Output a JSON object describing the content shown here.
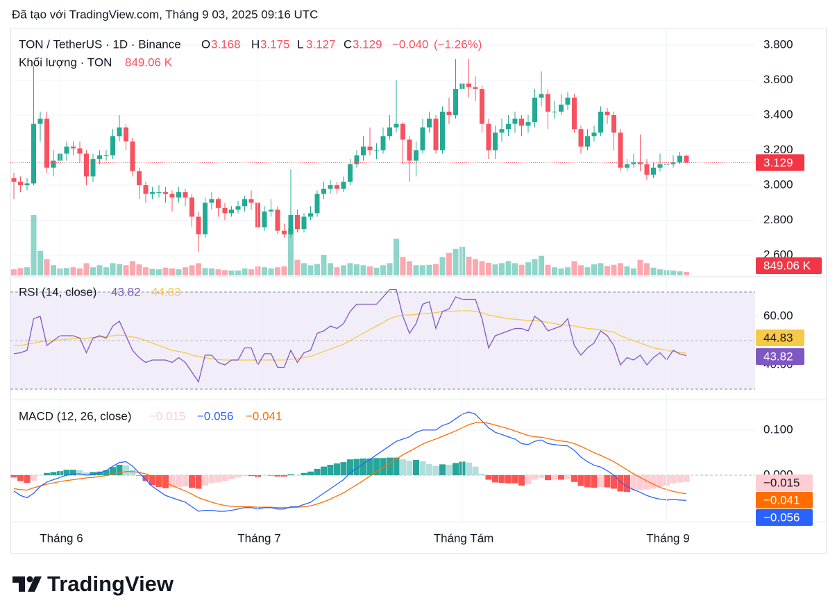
{
  "header": "Đã tạo với TradingView.com, Tháng 9 03, 2025 09:16 UTC",
  "footer_brand": "TradingView",
  "chart_data": {
    "type": "candlestick",
    "symbol": "TON / TetherUS · 1D · Binance",
    "ohlc_legend": {
      "labels": [
        "O",
        "H",
        "L",
        "C"
      ],
      "values": [
        3.168,
        3.175,
        3.127,
        3.129
      ],
      "change": {
        "value": -0.04,
        "label": "−0.040"
      },
      "change_pct": {
        "value": -1.26,
        "label": "(−1.26%)"
      }
    },
    "up_color": "#22ab94",
    "down_color": "#f7525f",
    "open": [
      3.04,
      3.02,
      3.0,
      3.01,
      3.35,
      3.38,
      3.1,
      3.14,
      3.18,
      3.22,
      3.21,
      3.18,
      3.05,
      3.15,
      3.17,
      3.17,
      3.28,
      3.33,
      3.25,
      3.08,
      3.0,
      2.95,
      2.96,
      2.96,
      2.95,
      2.93,
      2.96,
      2.93,
      2.82,
      2.72,
      2.9,
      2.92,
      2.87,
      2.84,
      2.86,
      2.88,
      2.92,
      2.9,
      2.76,
      2.85,
      2.86,
      2.74,
      2.72,
      2.83,
      2.75,
      2.82,
      2.84,
      2.95,
      2.98,
      3.0,
      2.98,
      3.02,
      3.12,
      3.17,
      3.22,
      3.2,
      3.2,
      3.28,
      3.33,
      3.35,
      3.26,
      3.14,
      3.2,
      3.33,
      3.38,
      3.2,
      3.42,
      3.4,
      3.55,
      3.58,
      3.56,
      3.55,
      3.35,
      3.2,
      3.3,
      3.32,
      3.35,
      3.38,
      3.34,
      3.36,
      3.5,
      3.52,
      3.42,
      3.42,
      3.46,
      3.5,
      3.32,
      3.22,
      3.28,
      3.3,
      3.42,
      3.4,
      3.3,
      3.1,
      3.12,
      3.13,
      3.12,
      3.06,
      3.1,
      3.12,
      3.12,
      3.13,
      3.168
    ],
    "high": [
      3.07,
      3.05,
      3.04,
      3.68,
      3.42,
      3.42,
      3.2,
      3.22,
      3.25,
      3.25,
      3.25,
      3.2,
      3.18,
      3.2,
      3.2,
      3.32,
      3.4,
      3.35,
      3.27,
      3.1,
      3.02,
      2.99,
      3.0,
      2.99,
      2.97,
      2.99,
      2.98,
      2.95,
      2.85,
      2.93,
      2.96,
      2.93,
      2.9,
      2.88,
      2.91,
      2.94,
      2.97,
      2.92,
      2.88,
      2.92,
      2.88,
      2.78,
      3.09,
      2.86,
      2.84,
      2.88,
      2.97,
      3.02,
      3.03,
      3.02,
      3.05,
      3.15,
      3.2,
      3.28,
      3.33,
      3.24,
      3.33,
      3.4,
      3.6,
      3.36,
      3.28,
      3.25,
      3.38,
      3.42,
      3.4,
      3.45,
      3.5,
      3.72,
      3.75,
      3.72,
      3.62,
      3.57,
      3.38,
      3.34,
      3.38,
      3.4,
      3.42,
      3.4,
      3.4,
      3.55,
      3.65,
      3.55,
      3.48,
      3.52,
      3.53,
      3.52,
      3.34,
      3.32,
      3.34,
      3.45,
      3.44,
      3.42,
      3.32,
      3.15,
      3.18,
      3.29,
      3.15,
      3.13,
      3.18,
      3.18,
      3.17,
      3.19,
      3.175
    ],
    "low": [
      2.92,
      2.96,
      2.97,
      3.0,
      3.25,
      3.07,
      3.05,
      3.1,
      3.14,
      3.17,
      3.13,
      3.0,
      3.02,
      3.12,
      3.14,
      3.15,
      3.25,
      3.2,
      3.05,
      2.92,
      2.9,
      2.92,
      2.93,
      2.9,
      2.85,
      2.9,
      2.88,
      2.76,
      2.62,
      2.7,
      2.86,
      2.82,
      2.8,
      2.82,
      2.84,
      2.85,
      2.86,
      2.74,
      2.74,
      2.82,
      2.72,
      2.7,
      2.7,
      2.73,
      2.73,
      2.8,
      2.82,
      2.92,
      2.95,
      2.95,
      2.96,
      3.0,
      3.1,
      3.14,
      3.17,
      3.15,
      3.18,
      3.26,
      3.3,
      3.12,
      3.02,
      3.05,
      3.18,
      3.3,
      3.18,
      3.18,
      3.35,
      3.38,
      3.5,
      3.5,
      3.48,
      3.3,
      3.15,
      3.15,
      3.25,
      3.28,
      3.3,
      3.28,
      3.3,
      3.33,
      3.45,
      3.32,
      3.38,
      3.4,
      3.43,
      3.3,
      3.18,
      3.2,
      3.25,
      3.28,
      3.35,
      3.2,
      3.08,
      3.08,
      3.1,
      3.08,
      3.03,
      3.04,
      3.08,
      3.09,
      3.1,
      3.12,
      3.127
    ],
    "close": [
      3.02,
      3.0,
      3.01,
      3.35,
      3.38,
      3.1,
      3.14,
      3.18,
      3.22,
      3.21,
      3.18,
      3.05,
      3.15,
      3.17,
      3.17,
      3.28,
      3.33,
      3.25,
      3.08,
      3.0,
      2.95,
      2.96,
      2.96,
      2.95,
      2.93,
      2.96,
      2.93,
      2.82,
      2.72,
      2.9,
      2.92,
      2.87,
      2.84,
      2.86,
      2.88,
      2.92,
      2.9,
      2.76,
      2.85,
      2.86,
      2.74,
      2.72,
      2.83,
      2.75,
      2.82,
      2.84,
      2.95,
      2.98,
      3.0,
      2.98,
      3.02,
      3.12,
      3.17,
      3.22,
      3.2,
      3.2,
      3.28,
      3.33,
      3.35,
      3.26,
      3.14,
      3.2,
      3.33,
      3.38,
      3.2,
      3.42,
      3.4,
      3.55,
      3.58,
      3.56,
      3.55,
      3.35,
      3.2,
      3.3,
      3.32,
      3.35,
      3.38,
      3.34,
      3.36,
      3.5,
      3.52,
      3.42,
      3.42,
      3.46,
      3.5,
      3.32,
      3.22,
      3.28,
      3.3,
      3.42,
      3.4,
      3.3,
      3.1,
      3.12,
      3.13,
      3.12,
      3.06,
      3.1,
      3.12,
      3.12,
      3.13,
      3.168,
      3.129
    ],
    "ylim": [
      2.481,
      3.895
    ],
    "yticks": [
      {
        "value": 2.6,
        "label": "2.600"
      },
      {
        "value": 2.8,
        "label": "2.800"
      },
      {
        "value": 3.0,
        "label": "3.000"
      },
      {
        "value": 3.2,
        "label": "3.200"
      },
      {
        "value": 3.4,
        "label": "3.400"
      },
      {
        "value": 3.6,
        "label": "3.600"
      },
      {
        "value": 3.8,
        "label": "3.800"
      }
    ],
    "xticks": [
      {
        "value": 7,
        "label": "Tháng 6"
      },
      {
        "value": 37,
        "label": "Tháng 7"
      },
      {
        "value": 68,
        "label": "Tháng Tám"
      },
      {
        "value": 99,
        "label": "Tháng 9"
      }
    ],
    "volume": {
      "title": "Khối lượng · TON",
      "values": [
        1500,
        1800,
        2000,
        14800,
        6000,
        4000,
        2500,
        1700,
        1800,
        2000,
        1700,
        3000,
        2000,
        2500,
        2000,
        3000,
        2800,
        2500,
        3500,
        2700,
        2000,
        1600,
        1500,
        1900,
        1700,
        1500,
        2000,
        2500,
        3000,
        1800,
        1700,
        1500,
        1300,
        1200,
        1200,
        1700,
        1500,
        2200,
        2000,
        1700,
        2000,
        2200,
        11500,
        3800,
        3000,
        2500,
        2800,
        5000,
        3000,
        2000,
        2500,
        3000,
        2700,
        2500,
        2200,
        1900,
        2500,
        3000,
        9000,
        4500,
        3500,
        2500,
        2500,
        2600,
        2800,
        4500,
        5500,
        6500,
        7000,
        4600,
        4000,
        3500,
        3100,
        2700,
        3000,
        3500,
        3000,
        2600,
        3200,
        4000,
        4800,
        2600,
        2000,
        1700,
        2000,
        3500,
        2500,
        2000,
        2700,
        3000,
        2300,
        2600,
        3000,
        2200,
        1700,
        3800,
        3000,
        1900,
        1500,
        1300,
        1200,
        1000,
        849.06
      ],
      "value_labels": {
        "102": "849.06 K"
      }
    },
    "rsi": {
      "title": "RSI (14, close)",
      "color": "#7e57c2",
      "ma_color": "#f7c948",
      "values": [
        44.6,
        45,
        46,
        59,
        60,
        48,
        50,
        52,
        52,
        52,
        51,
        45,
        51,
        52,
        51,
        56,
        58,
        52,
        46,
        43,
        41,
        42,
        42,
        42,
        41,
        43,
        41,
        37,
        33,
        44,
        44,
        41,
        40,
        42,
        42,
        47,
        47,
        40,
        44.6,
        44.6,
        39,
        39,
        46,
        41,
        45,
        46,
        53,
        54,
        56,
        55,
        57,
        62,
        65,
        65,
        65,
        65,
        68,
        71,
        71,
        60,
        53,
        57,
        65,
        66,
        55,
        62,
        63,
        68,
        67,
        67,
        67,
        59,
        47,
        52,
        53,
        54,
        55,
        55,
        54,
        60,
        58,
        54,
        55,
        56,
        59,
        48,
        44,
        47,
        49,
        54,
        52,
        48,
        40,
        43,
        42,
        44,
        40,
        43,
        45,
        42,
        46,
        44.5,
        43.82
      ],
      "ma": [
        48,
        48,
        48.5,
        49,
        49.5,
        49.8,
        50,
        50.3,
        50.5,
        50.8,
        51,
        51,
        51.2,
        51.5,
        51.8,
        52,
        52.3,
        52,
        51.5,
        51,
        50,
        49,
        48,
        47,
        46,
        45.5,
        45,
        44,
        43.5,
        43,
        42.5,
        42.2,
        42,
        42,
        42,
        42,
        42,
        42,
        42,
        42,
        42,
        42,
        42.3,
        42.5,
        43,
        43.5,
        44.5,
        45.5,
        46.5,
        47.5,
        48.5,
        50,
        51.5,
        53,
        54.5,
        56,
        57.5,
        59,
        60,
        60.5,
        60.5,
        60.8,
        61,
        61.3,
        61.5,
        62,
        62,
        62.2,
        62.3,
        62.3,
        62,
        61.5,
        60.5,
        60,
        59.5,
        59,
        58.8,
        58.5,
        58.3,
        58.2,
        58,
        57.5,
        57,
        56.5,
        56.3,
        56,
        55.5,
        55,
        54.8,
        54.5,
        54,
        53.5,
        52,
        51,
        50,
        49,
        48,
        47,
        46.5,
        46,
        45.5,
        45.1,
        44.83
      ],
      "ylim": [
        25.7,
        76
      ],
      "yticks": [
        {
          "value": 40,
          "label": "40.00"
        },
        {
          "value": 60,
          "label": "60.00"
        }
      ],
      "levels": [
        70,
        50,
        30
      ]
    },
    "macd": {
      "title": "MACD (12, 26, close)",
      "macd_color": "#2962ff",
      "signal_color": "#ff6d00",
      "histogram_colors": [
        "#26a69a",
        "#b2dfdb",
        "#ffcdd2",
        "#ff5252"
      ],
      "macd": [
        -0.035,
        -0.045,
        -0.05,
        -0.04,
        -0.025,
        -0.015,
        -0.01,
        -0.005,
        0,
        0.002,
        0.003,
        0,
        0.002,
        0.005,
        0.01,
        0.02,
        0.028,
        0.03,
        0.02,
        0.005,
        -0.01,
        -0.025,
        -0.035,
        -0.045,
        -0.05,
        -0.055,
        -0.06,
        -0.07,
        -0.08,
        -0.078,
        -0.078,
        -0.08,
        -0.08,
        -0.078,
        -0.075,
        -0.072,
        -0.072,
        -0.075,
        -0.072,
        -0.072,
        -0.075,
        -0.075,
        -0.07,
        -0.07,
        -0.065,
        -0.06,
        -0.05,
        -0.04,
        -0.03,
        -0.02,
        -0.01,
        0.005,
        0.015,
        0.025,
        0.035,
        0.045,
        0.055,
        0.065,
        0.075,
        0.08,
        0.085,
        0.095,
        0.1,
        0.1,
        0.1,
        0.11,
        0.115,
        0.125,
        0.135,
        0.14,
        0.135,
        0.12,
        0.105,
        0.095,
        0.09,
        0.085,
        0.08,
        0.07,
        0.068,
        0.075,
        0.078,
        0.07,
        0.068,
        0.066,
        0.065,
        0.055,
        0.04,
        0.03,
        0.022,
        0.018,
        0.01,
        0,
        -0.015,
        -0.025,
        -0.032,
        -0.038,
        -0.045,
        -0.05,
        -0.053,
        -0.055,
        -0.054,
        -0.055,
        -0.056
      ],
      "signal": [
        -0.03,
        -0.032,
        -0.033,
        -0.028,
        -0.024,
        -0.02,
        -0.017,
        -0.014,
        -0.012,
        -0.01,
        -0.008,
        -0.006,
        -0.005,
        -0.003,
        -0.001,
        0.002,
        0.005,
        0.008,
        0.008,
        0.006,
        0.003,
        -0.003,
        -0.009,
        -0.016,
        -0.023,
        -0.029,
        -0.035,
        -0.042,
        -0.05,
        -0.055,
        -0.06,
        -0.064,
        -0.067,
        -0.069,
        -0.07,
        -0.07,
        -0.07,
        -0.071,
        -0.071,
        -0.071,
        -0.072,
        -0.072,
        -0.072,
        -0.071,
        -0.07,
        -0.068,
        -0.064,
        -0.059,
        -0.053,
        -0.046,
        -0.039,
        -0.03,
        -0.021,
        -0.012,
        -0.002,
        0.007,
        0.017,
        0.026,
        0.036,
        0.045,
        0.053,
        0.061,
        0.069,
        0.075,
        0.08,
        0.086,
        0.092,
        0.098,
        0.105,
        0.112,
        0.116,
        0.117,
        0.115,
        0.111,
        0.107,
        0.103,
        0.098,
        0.093,
        0.088,
        0.085,
        0.084,
        0.081,
        0.078,
        0.076,
        0.074,
        0.07,
        0.064,
        0.057,
        0.05,
        0.044,
        0.037,
        0.03,
        0.021,
        0.012,
        0.003,
        -0.005,
        -0.013,
        -0.02,
        -0.027,
        -0.032,
        -0.036,
        -0.039,
        -0.041
      ],
      "histogram": [
        -0.005,
        -0.013,
        -0.017,
        -0.012,
        -0.001,
        0.005,
        0.007,
        0.009,
        0.012,
        0.012,
        0.011,
        0.006,
        0.007,
        0.008,
        0.011,
        0.018,
        0.023,
        0.022,
        0.012,
        -0.001,
        -0.013,
        -0.022,
        -0.026,
        -0.029,
        -0.027,
        -0.026,
        -0.025,
        -0.028,
        -0.03,
        -0.023,
        -0.018,
        -0.016,
        -0.013,
        -0.009,
        -0.005,
        -0.002,
        -0.002,
        -0.004,
        -0.001,
        -0.001,
        -0.003,
        -0.003,
        0.002,
        0.001,
        0.005,
        0.008,
        0.014,
        0.019,
        0.023,
        0.026,
        0.029,
        0.035,
        0.036,
        0.037,
        0.037,
        0.038,
        0.038,
        0.039,
        0.039,
        0.035,
        0.032,
        0.034,
        0.031,
        0.025,
        0.02,
        0.024,
        0.023,
        0.027,
        0.03,
        0.028,
        0.019,
        0.003,
        -0.01,
        -0.016,
        -0.017,
        -0.018,
        -0.018,
        -0.023,
        -0.02,
        -0.01,
        -0.006,
        -0.011,
        -0.01,
        -0.01,
        -0.009,
        -0.015,
        -0.024,
        -0.027,
        -0.028,
        -0.026,
        -0.027,
        -0.03,
        -0.036,
        -0.037,
        -0.035,
        -0.033,
        -0.032,
        -0.03,
        -0.026,
        -0.023,
        -0.018,
        -0.016,
        -0.015
      ],
      "last_labels": {
        "histogram": "−0.015",
        "macd": "−0.056",
        "signal": "−0.041"
      },
      "ylim": [
        -0.103,
        0.166
      ],
      "yticks": [
        {
          "value": 0.1,
          "label": "0.100"
        },
        {
          "value": 0,
          "label": "0.000"
        }
      ]
    }
  }
}
